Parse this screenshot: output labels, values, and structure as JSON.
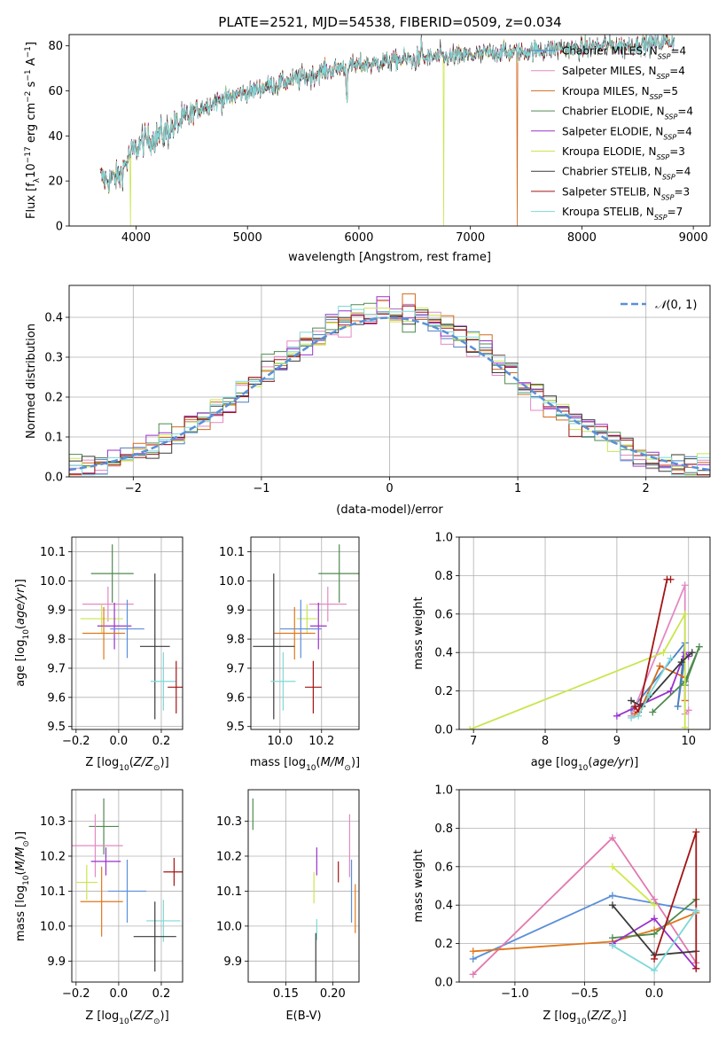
{
  "figure_title": "PLATE=2521, MJD=54538, FIBERID=0509, z=0.034",
  "colors": {
    "chabrier_miles": "#4a7fc0",
    "salpeter_miles": "#e389c4",
    "kroupa_miles": "#d2691e",
    "chabrier_elodie": "#4f8a4f",
    "salpeter_elodie": "#9932cc",
    "kroupa_elodie": "#c8e650",
    "chabrier_stelib": "#3a3a3a",
    "salpeter_stelib": "#a31515",
    "kroupa_stelib": "#7fd8d8",
    "normal_curve": "#5b8fd9",
    "pane_mw_age": [
      "#4a7fc0",
      "#e389c4",
      "#d2691e",
      "#4f8a4f",
      "#9932cc",
      "#c8e650",
      "#3a3a3a",
      "#a31515",
      "#7fd8d8"
    ],
    "pane_mw_z": [
      "#5b8fd9",
      "#e07ab0",
      "#e0771c",
      "#4f8a4f",
      "#9932cc",
      "#d0e84a",
      "#3a3a3a",
      "#a31515",
      "#7fd8d8"
    ]
  },
  "chart_data": [
    {
      "id": "spectrum",
      "type": "line",
      "title": "PLATE=2521, MJD=54538, FIBERID=0509, z=0.034",
      "xlabel": "wavelength [Angstrom, rest frame]",
      "ylabel": "Flux [f_λ 10^-17 erg cm^-2 s^-1 A^-1]",
      "xlim": [
        3400,
        9150
      ],
      "ylim": [
        0,
        85
      ],
      "xticks": [
        4000,
        5000,
        6000,
        7000,
        8000,
        9000
      ],
      "yticks": [
        0,
        20,
        40,
        60,
        80
      ],
      "legend_position": "upper right",
      "series": [
        {
          "name": "Chabrier MILES, N_SSP=4"
        },
        {
          "name": "Salpeter MILES, N_SSP=4"
        },
        {
          "name": "Kroupa MILES, N_SSP=5"
        },
        {
          "name": "Chabrier ELODIE, N_SSP=4"
        },
        {
          "name": "Salpeter ELODIE, N_SSP=4"
        },
        {
          "name": "Kroupa ELODIE, N_SSP=3"
        },
        {
          "name": "Chabrier STELIB, N_SSP=4"
        },
        {
          "name": "Salpeter STELIB, N_SSP=3"
        },
        {
          "name": "Kroupa STELIB, N_SSP=7"
        }
      ],
      "legend_labels": [
        {
          "main": "Chabrier MILES, N",
          "sub": "SSP",
          "tail": "=4"
        },
        {
          "main": "Salpeter MILES, N",
          "sub": "SSP",
          "tail": "=4"
        },
        {
          "main": "Kroupa MILES, N",
          "sub": "SSP",
          "tail": "=5"
        },
        {
          "main": "Chabrier ELODIE, N",
          "sub": "SSP",
          "tail": "=4"
        },
        {
          "main": "Salpeter ELODIE, N",
          "sub": "SSP",
          "tail": "=4"
        },
        {
          "main": "Kroupa ELODIE, N",
          "sub": "SSP",
          "tail": "=3"
        },
        {
          "main": "Chabrier STELIB, N",
          "sub": "SSP",
          "tail": "=4"
        },
        {
          "main": "Salpeter STELIB, N",
          "sub": "SSP",
          "tail": "=3"
        },
        {
          "main": "Kroupa STELIB, N",
          "sub": "SSP",
          "tail": "=7"
        }
      ],
      "continuum": [
        [
          3680,
          22
        ],
        [
          3750,
          20
        ],
        [
          3850,
          22
        ],
        [
          3950,
          32
        ],
        [
          4050,
          37
        ],
        [
          4150,
          39
        ],
        [
          4250,
          41
        ],
        [
          4350,
          45
        ],
        [
          4450,
          48
        ],
        [
          4550,
          52
        ],
        [
          4650,
          54
        ],
        [
          4750,
          56
        ],
        [
          4850,
          57
        ],
        [
          4950,
          59
        ],
        [
          5050,
          60
        ],
        [
          5150,
          62
        ],
        [
          5250,
          63
        ],
        [
          5350,
          64
        ],
        [
          5500,
          66
        ],
        [
          5650,
          68
        ],
        [
          5800,
          70
        ],
        [
          5950,
          71
        ],
        [
          6100,
          72
        ],
        [
          6250,
          73
        ],
        [
          6400,
          74
        ],
        [
          6550,
          74
        ],
        [
          6700,
          75
        ],
        [
          6850,
          75
        ],
        [
          7000,
          76
        ],
        [
          7200,
          77
        ],
        [
          7400,
          77
        ],
        [
          7600,
          78
        ],
        [
          7800,
          79
        ],
        [
          8000,
          79
        ],
        [
          8200,
          80
        ],
        [
          8400,
          80
        ],
        [
          8600,
          81
        ],
        [
          8800,
          82
        ]
      ],
      "features": [
        {
          "x": 5890,
          "depth": 12
        },
        {
          "x": 6563,
          "height": 8
        },
        {
          "x": 6760,
          "drop_to": 0
        },
        {
          "x": 7420,
          "drop_to": 0
        },
        {
          "x": 3950,
          "drop_to": 0
        }
      ]
    },
    {
      "id": "residual_hist",
      "type": "step-histogram",
      "xlabel": "(data-model)/error",
      "ylabel": "Normed distribution",
      "xlim": [
        -2.5,
        2.5
      ],
      "ylim": [
        0,
        0.48
      ],
      "xticks": [
        -2,
        -1,
        0,
        1,
        2
      ],
      "yticks": [
        0.0,
        0.1,
        0.2,
        0.3,
        0.4
      ],
      "grid": true,
      "legend": {
        "label": "N(0,1)",
        "position": "upper right",
        "style": "dashed"
      },
      "reference_curve": "normal(0,1)"
    },
    {
      "id": "age_vs_z",
      "type": "errorbar",
      "xlabel": "Z [log10(Z/Zsun)]",
      "ylabel": "age [log10(age/yr)]",
      "xlim": [
        -0.22,
        0.3
      ],
      "ylim": [
        9.49,
        10.15
      ],
      "xticks": [
        -0.2,
        0.0,
        0.2
      ],
      "yticks": [
        9.5,
        9.6,
        9.7,
        9.8,
        9.9,
        10.0,
        10.1
      ],
      "grid": true,
      "points": [
        {
          "x": -0.03,
          "xerr": 0.1,
          "y": 10.025,
          "yerr": 0.1,
          "color": "#4f8a4f"
        },
        {
          "x": -0.05,
          "xerr": 0.12,
          "y": 9.92,
          "yerr": 0.06,
          "color": "#e389c4"
        },
        {
          "x": -0.08,
          "xerr": 0.1,
          "y": 9.87,
          "yerr": 0.05,
          "color": "#c8e650"
        },
        {
          "x": -0.02,
          "xerr": 0.08,
          "y": 9.845,
          "yerr": 0.08,
          "color": "#9932cc"
        },
        {
          "x": 0.04,
          "xerr": 0.08,
          "y": 9.835,
          "yerr": 0.1,
          "color": "#5b8fd9"
        },
        {
          "x": -0.07,
          "xerr": 0.1,
          "y": 9.82,
          "yerr": 0.09,
          "color": "#e0771c"
        },
        {
          "x": 0.17,
          "xerr": 0.07,
          "y": 9.775,
          "yerr": 0.25,
          "color": "#3a3a3a"
        },
        {
          "x": 0.21,
          "xerr": 0.06,
          "y": 9.655,
          "yerr": 0.1,
          "color": "#7fd8d8"
        },
        {
          "x": 0.27,
          "xerr": 0.04,
          "y": 9.635,
          "yerr": 0.09,
          "color": "#a31515"
        }
      ]
    },
    {
      "id": "age_vs_mass",
      "type": "errorbar",
      "xlabel": "mass [log10(M/Msun)]",
      "ylabel": "",
      "xlim": [
        9.86,
        10.38
      ],
      "ylim": [
        9.49,
        10.15
      ],
      "xticks": [
        10.0,
        10.2
      ],
      "yticks": [
        9.5,
        9.6,
        9.7,
        9.8,
        9.9,
        10.0,
        10.1
      ],
      "grid": true,
      "points": [
        {
          "x": 10.285,
          "xerr": 0.1,
          "y": 10.025,
          "yerr": 0.1,
          "color": "#4f8a4f"
        },
        {
          "x": 10.23,
          "xerr": 0.09,
          "y": 9.92,
          "yerr": 0.06,
          "color": "#e389c4"
        },
        {
          "x": 10.13,
          "xerr": 0.05,
          "y": 9.87,
          "yerr": 0.05,
          "color": "#c8e650"
        },
        {
          "x": 10.185,
          "xerr": 0.04,
          "y": 9.845,
          "yerr": 0.08,
          "color": "#9932cc"
        },
        {
          "x": 10.1,
          "xerr": 0.1,
          "y": 9.835,
          "yerr": 0.1,
          "color": "#5b8fd9"
        },
        {
          "x": 10.07,
          "xerr": 0.1,
          "y": 9.82,
          "yerr": 0.09,
          "color": "#e0771c"
        },
        {
          "x": 9.97,
          "xerr": 0.1,
          "y": 9.775,
          "yerr": 0.25,
          "color": "#3a3a3a"
        },
        {
          "x": 10.015,
          "xerr": 0.06,
          "y": 9.655,
          "yerr": 0.1,
          "color": "#7fd8d8"
        },
        {
          "x": 10.16,
          "xerr": 0.04,
          "y": 9.635,
          "yerr": 0.09,
          "color": "#a31515"
        }
      ]
    },
    {
      "id": "mw_vs_age",
      "type": "line",
      "xlabel": "age [log10(age/yr)]",
      "ylabel": "mass weight",
      "xlim": [
        6.8,
        10.3
      ],
      "ylim": [
        0.0,
        1.0
      ],
      "xticks": [
        7,
        8,
        9,
        10
      ],
      "yticks": [
        0.0,
        0.2,
        0.4,
        0.6,
        0.8,
        1.0
      ],
      "grid": true,
      "series": [
        {
          "name": "Chabrier MILES",
          "x": [
            9.2,
            9.95,
            9.85,
            9.95
          ],
          "y": [
            0.1,
            0.45,
            0.12,
            0.38
          ]
        },
        {
          "name": "Salpeter MILES",
          "x": [
            9.2,
            9.95,
            9.95,
            10.0
          ],
          "y": [
            0.07,
            0.75,
            0.08,
            0.1
          ]
        },
        {
          "name": "Kroupa MILES",
          "x": [
            9.25,
            9.35,
            9.6,
            9.95,
            9.95
          ],
          "y": [
            0.08,
            0.12,
            0.33,
            0.27,
            0.15
          ]
        },
        {
          "name": "Chabrier ELODIE",
          "x": [
            9.5,
            9.95,
            10.15,
            9.95
          ],
          "y": [
            0.09,
            0.25,
            0.43,
            0.23
          ]
        },
        {
          "name": "Salpeter ELODIE",
          "x": [
            9.0,
            9.75,
            9.95,
            10.0
          ],
          "y": [
            0.07,
            0.2,
            0.4,
            0.38
          ]
        },
        {
          "name": "Kroupa ELODIE",
          "x": [
            6.95,
            9.65,
            9.95,
            9.95
          ],
          "y": [
            0.0,
            0.4,
            0.6,
            0.01
          ]
        },
        {
          "name": "Chabrier STELIB",
          "x": [
            9.2,
            9.35,
            9.9,
            10.05
          ],
          "y": [
            0.15,
            0.12,
            0.35,
            0.4
          ]
        },
        {
          "name": "Salpeter STELIB",
          "x": [
            9.25,
            9.3,
            9.7,
            9.75
          ],
          "y": [
            0.12,
            0.09,
            0.78,
            0.78
          ]
        },
        {
          "name": "Kroupa STELIB",
          "x": [
            9.2,
            9.3,
            9.45,
            9.75
          ],
          "y": [
            0.06,
            0.07,
            0.18,
            0.37
          ]
        }
      ]
    },
    {
      "id": "mass_vs_z",
      "type": "errorbar",
      "xlabel": "Z [log10(Z/Zsun)]",
      "ylabel": "mass [log10(M/Msun)]",
      "xlim": [
        -0.22,
        0.3
      ],
      "ylim": [
        9.84,
        10.39
      ],
      "xticks": [
        -0.2,
        0.0,
        0.2
      ],
      "yticks": [
        9.9,
        10.0,
        10.1,
        10.2,
        10.3
      ],
      "grid": true,
      "points": [
        {
          "x": -0.07,
          "xerr": 0.07,
          "y": 10.285,
          "yerr": 0.08,
          "color": "#4f8a4f"
        },
        {
          "x": -0.11,
          "xerr": 0.13,
          "y": 10.23,
          "yerr": 0.09,
          "color": "#e389c4"
        },
        {
          "x": -0.06,
          "xerr": 0.07,
          "y": 10.185,
          "yerr": 0.04,
          "color": "#9932cc"
        },
        {
          "x": 0.26,
          "xerr": 0.05,
          "y": 10.155,
          "yerr": 0.04,
          "color": "#a31515"
        },
        {
          "x": -0.15,
          "xerr": 0.05,
          "y": 10.125,
          "yerr": 0.05,
          "color": "#c8e650"
        },
        {
          "x": 0.04,
          "xerr": 0.09,
          "y": 10.1,
          "yerr": 0.09,
          "color": "#5b8fd9"
        },
        {
          "x": -0.08,
          "xerr": 0.1,
          "y": 10.07,
          "yerr": 0.1,
          "color": "#e0771c"
        },
        {
          "x": 0.21,
          "xerr": 0.08,
          "y": 10.015,
          "yerr": 0.06,
          "color": "#7fd8d8"
        },
        {
          "x": 0.17,
          "xerr": 0.1,
          "y": 9.97,
          "yerr": 0.1,
          "color": "#3a3a3a"
        }
      ]
    },
    {
      "id": "mass_vs_ebv",
      "type": "errorbar",
      "xlabel": "E(B-V)",
      "ylabel": "",
      "xlim": [
        0.11,
        0.228
      ],
      "ylim": [
        9.84,
        10.39
      ],
      "xticks": [
        0.15,
        0.2
      ],
      "yticks": [
        9.9,
        10.0,
        10.1,
        10.2,
        10.3
      ],
      "grid": true,
      "points": [
        {
          "x": 0.115,
          "xerr": 0.0,
          "y": 10.32,
          "yerr": 0.045,
          "color": "#4f8a4f"
        },
        {
          "x": 0.218,
          "xerr": 0.0,
          "y": 10.23,
          "yerr": 0.09,
          "color": "#e389c4"
        },
        {
          "x": 0.183,
          "xerr": 0.0,
          "y": 10.185,
          "yerr": 0.04,
          "color": "#9932cc"
        },
        {
          "x": 0.206,
          "xerr": 0.0,
          "y": 10.155,
          "yerr": 0.03,
          "color": "#a31515"
        },
        {
          "x": 0.18,
          "xerr": 0.0,
          "y": 10.11,
          "yerr": 0.045,
          "color": "#c8e650"
        },
        {
          "x": 0.22,
          "xerr": 0.0,
          "y": 10.1,
          "yerr": 0.09,
          "color": "#5b8fd9"
        },
        {
          "x": 0.224,
          "xerr": 0.0,
          "y": 10.05,
          "yerr": 0.07,
          "color": "#e0771c"
        },
        {
          "x": 0.183,
          "xerr": 0.0,
          "y": 9.99,
          "yerr": 0.03,
          "color": "#7fd8d8"
        },
        {
          "x": 0.182,
          "xerr": 0.0,
          "y": 9.91,
          "yerr": 0.07,
          "color": "#3a3a3a"
        }
      ]
    },
    {
      "id": "mw_vs_z",
      "type": "line",
      "xlabel": "Z [log10(Z/Zsun)]",
      "ylabel": "mass weight",
      "xlim": [
        -1.4,
        0.4
      ],
      "ylim": [
        0.0,
        1.0
      ],
      "xticks": [
        -1.0,
        -0.5,
        0.0
      ],
      "yticks": [
        0.0,
        0.2,
        0.4,
        0.6,
        0.8,
        1.0
      ],
      "grid": true,
      "series": [
        {
          "name": "Chabrier MILES",
          "x": [
            -1.3,
            -0.3,
            0.0,
            0.3
          ],
          "y": [
            0.12,
            0.45,
            0.41,
            0.37
          ]
        },
        {
          "name": "Salpeter MILES",
          "x": [
            -1.3,
            -0.3,
            0.0,
            0.3
          ],
          "y": [
            0.04,
            0.75,
            0.43,
            0.1
          ]
        },
        {
          "name": "Kroupa MILES",
          "x": [
            -1.3,
            -0.3,
            0.0,
            0.3
          ],
          "y": [
            0.16,
            0.21,
            0.27,
            0.36
          ]
        },
        {
          "name": "Chabrier ELODIE",
          "x": [
            -0.3,
            0.0,
            0.3
          ],
          "y": [
            0.23,
            0.25,
            0.43
          ]
        },
        {
          "name": "Salpeter ELODIE",
          "x": [
            -0.3,
            0.0,
            0.3
          ],
          "y": [
            0.2,
            0.33,
            0.07
          ]
        },
        {
          "name": "Kroupa ELODIE",
          "x": [
            -0.3,
            0.0
          ],
          "y": [
            0.6,
            0.4
          ]
        },
        {
          "name": "Chabrier STELIB",
          "x": [
            -0.3,
            0.0,
            0.3
          ],
          "y": [
            0.4,
            0.14,
            0.16
          ]
        },
        {
          "name": "Salpeter STELIB",
          "x": [
            0.0,
            0.3,
            0.3
          ],
          "y": [
            0.12,
            0.78,
            0.07
          ]
        },
        {
          "name": "Kroupa STELIB",
          "x": [
            -0.3,
            0.0,
            0.3
          ],
          "y": [
            0.19,
            0.06,
            0.37
          ]
        }
      ]
    }
  ]
}
